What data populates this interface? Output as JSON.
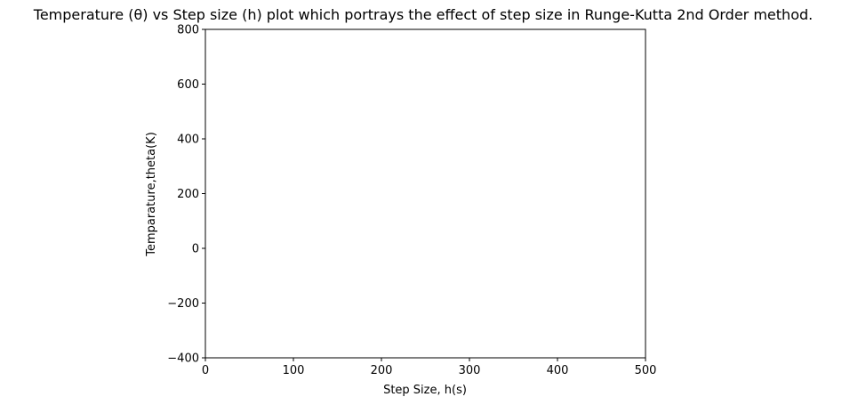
{
  "chart_data": {
    "type": "line",
    "title": "Temperature  (θ)  vs Step size  (h)  plot which portrays the effect of step size in Runge-Kutta 2nd Order method.",
    "xlabel": "Step Size, h(s)",
    "ylabel": "Temparature,theta(K)",
    "xlim": [
      0,
      500
    ],
    "ylim": [
      -400,
      800
    ],
    "xticks": [
      0,
      100,
      200,
      300,
      400,
      500
    ],
    "yticks": [
      -400,
      -200,
      0,
      200,
      400,
      600,
      800
    ],
    "xtick_labels": [
      "0",
      "100",
      "200",
      "300",
      "400",
      "500"
    ],
    "ytick_labels": [
      "−400",
      "−200",
      "0",
      "200",
      "400",
      "600",
      "800"
    ],
    "grid": false,
    "series": []
  }
}
